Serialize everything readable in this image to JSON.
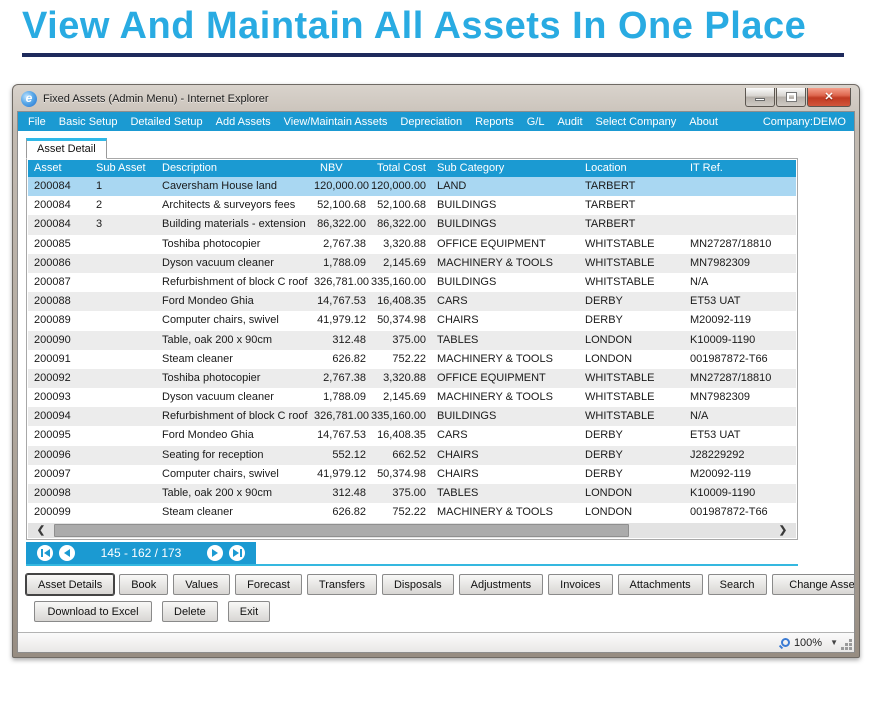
{
  "page": {
    "title": "View And Maintain All Assets In One Place"
  },
  "window": {
    "title": "Fixed Assets (Admin Menu) - Internet Explorer",
    "menu": {
      "items": [
        "File",
        "Basic Setup",
        "Detailed Setup",
        "Add Assets",
        "View/Maintain Assets",
        "Depreciation",
        "Reports",
        "G/L",
        "Audit",
        "Select Company",
        "About"
      ],
      "company_label": "Company:DEMO"
    },
    "tab_label": "Asset Detail",
    "table": {
      "columns": [
        "Asset",
        "Sub Asset",
        "Description",
        "NBV",
        "Total Cost",
        "Sub Category",
        "Location",
        "IT Ref."
      ],
      "numeric_columns": [
        3,
        4
      ],
      "selected_row_index": 0,
      "rows": [
        [
          "200084",
          "1",
          "Caversham House land",
          "120,000.00",
          "120,000.00",
          "LAND",
          "TARBERT",
          ""
        ],
        [
          "200084",
          "2",
          "Architects & surveyors fees",
          "52,100.68",
          "52,100.68",
          "BUILDINGS",
          "TARBERT",
          ""
        ],
        [
          "200084",
          "3",
          "Building materials - extension",
          "86,322.00",
          "86,322.00",
          "BUILDINGS",
          "TARBERT",
          ""
        ],
        [
          "200085",
          "",
          "Toshiba photocopier",
          "2,767.38",
          "3,320.88",
          "OFFICE EQUIPMENT",
          "WHITSTABLE",
          "MN27287/18810"
        ],
        [
          "200086",
          "",
          "Dyson vacuum cleaner",
          "1,788.09",
          "2,145.69",
          "MACHINERY & TOOLS",
          "WHITSTABLE",
          "MN7982309"
        ],
        [
          "200087",
          "",
          "Refurbishment of block C roof",
          "326,781.00",
          "335,160.00",
          "BUILDINGS",
          "WHITSTABLE",
          "N/A"
        ],
        [
          "200088",
          "",
          "Ford Mondeo Ghia",
          "14,767.53",
          "16,408.35",
          "CARS",
          "DERBY",
          "ET53 UAT"
        ],
        [
          "200089",
          "",
          "Computer chairs, swivel",
          "41,979.12",
          "50,374.98",
          "CHAIRS",
          "DERBY",
          "M20092-119"
        ],
        [
          "200090",
          "",
          "Table, oak 200 x 90cm",
          "312.48",
          "375.00",
          "TABLES",
          "LONDON",
          "K10009-1190"
        ],
        [
          "200091",
          "",
          "Steam cleaner",
          "626.82",
          "752.22",
          "MACHINERY & TOOLS",
          "LONDON",
          "001987872-T66"
        ],
        [
          "200092",
          "",
          "Toshiba photocopier",
          "2,767.38",
          "3,320.88",
          "OFFICE EQUIPMENT",
          "WHITSTABLE",
          "MN27287/18810"
        ],
        [
          "200093",
          "",
          "Dyson vacuum cleaner",
          "1,788.09",
          "2,145.69",
          "MACHINERY & TOOLS",
          "WHITSTABLE",
          "MN7982309"
        ],
        [
          "200094",
          "",
          "Refurbishment of block C roof",
          "326,781.00",
          "335,160.00",
          "BUILDINGS",
          "WHITSTABLE",
          "N/A"
        ],
        [
          "200095",
          "",
          "Ford Mondeo Ghia",
          "14,767.53",
          "16,408.35",
          "CARS",
          "DERBY",
          "ET53 UAT"
        ],
        [
          "200096",
          "",
          "Seating for reception",
          "552.12",
          "662.52",
          "CHAIRS",
          "DERBY",
          "J28229292"
        ],
        [
          "200097",
          "",
          "Computer chairs, swivel",
          "41,979.12",
          "50,374.98",
          "CHAIRS",
          "DERBY",
          "M20092-119"
        ],
        [
          "200098",
          "",
          "Table, oak 200 x 90cm",
          "312.48",
          "375.00",
          "TABLES",
          "LONDON",
          "K10009-1190"
        ],
        [
          "200099",
          "",
          "Steam cleaner",
          "626.82",
          "752.22",
          "MACHINERY & TOOLS",
          "LONDON",
          "001987872-T66"
        ]
      ]
    },
    "pagination": {
      "label": "145 - 162 / 173"
    },
    "action_buttons_row1": [
      "Asset Details",
      "Book",
      "Values",
      "Forecast",
      "Transfers",
      "Disposals",
      "Adjustments",
      "Invoices",
      "Attachments",
      "Search",
      "Change Asset ID"
    ],
    "action_buttons_row2": [
      "Download to Excel",
      "Delete",
      "Exit"
    ],
    "status": {
      "zoom_level": "100%"
    }
  },
  "colors": {
    "title_cyan": "#29ABE2",
    "underline_navy": "#1E2A5C",
    "accent_blue": "#1B9AD2",
    "selected_row": "#A9D7F2",
    "alt_row": "#ECECEC",
    "tab_accent": "#2FB9E8",
    "close_red": "#C03A22"
  }
}
